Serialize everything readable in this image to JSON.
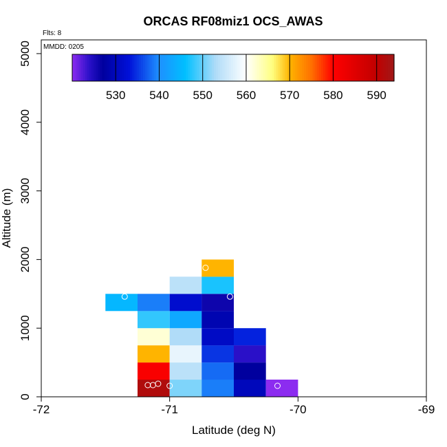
{
  "chart_data": {
    "type": "heatmap",
    "title": "ORCAS RF08miz1 OCS_AWAS",
    "flights_label": "Flts: 8",
    "date_label": "MMDD: 0205",
    "xlabel": "Latitude (deg N)",
    "ylabel": "Altitude (m)",
    "xlim": [
      -72,
      -69
    ],
    "ylim": [
      0,
      5200
    ],
    "xticks": [
      -72,
      -71,
      -70,
      -69
    ],
    "xtick_labels": [
      "-72",
      "-71",
      "-70",
      "-69"
    ],
    "yticks": [
      0,
      1000,
      2000,
      3000,
      4000,
      5000
    ],
    "ytick_labels": [
      "0",
      "1000",
      "2000",
      "3000",
      "4000",
      "5000"
    ],
    "colorbar": {
      "range": [
        520,
        594
      ],
      "ticks": [
        530,
        540,
        550,
        560,
        570,
        580,
        590
      ],
      "tick_labels": [
        "530",
        "540",
        "550",
        "560",
        "570",
        "580",
        "590"
      ],
      "stops": [
        {
          "v": 520,
          "c": "#8c2cf0"
        },
        {
          "v": 524,
          "c": "#2a10c8"
        },
        {
          "v": 527,
          "c": "#00009e"
        },
        {
          "v": 533,
          "c": "#0010d8"
        },
        {
          "v": 540,
          "c": "#1e90ff"
        },
        {
          "v": 546,
          "c": "#00bfff"
        },
        {
          "v": 553,
          "c": "#b0dcf8"
        },
        {
          "v": 560,
          "c": "#ffffff"
        },
        {
          "v": 566,
          "c": "#ffff80"
        },
        {
          "v": 570,
          "c": "#ffb400"
        },
        {
          "v": 575,
          "c": "#ff7000"
        },
        {
          "v": 580,
          "c": "#ff0000"
        },
        {
          "v": 590,
          "c": "#c00000"
        },
        {
          "v": 594,
          "c": "#a01818"
        }
      ]
    },
    "cell_width_deg": 0.25,
    "cell_height_m": 250,
    "cells": [
      {
        "lat": -71.125,
        "alt": 125,
        "value": 592
      },
      {
        "lat": -70.875,
        "alt": 125,
        "value": 551
      },
      {
        "lat": -70.625,
        "alt": 125,
        "value": 539
      },
      {
        "lat": -70.375,
        "alt": 125,
        "value": 530
      },
      {
        "lat": -70.125,
        "alt": 125,
        "value": 520
      },
      {
        "lat": -71.125,
        "alt": 375,
        "value": 581
      },
      {
        "lat": -70.875,
        "alt": 375,
        "value": 554
      },
      {
        "lat": -70.625,
        "alt": 375,
        "value": 538
      },
      {
        "lat": -70.375,
        "alt": 375,
        "value": 527
      },
      {
        "lat": -71.125,
        "alt": 625,
        "value": 570
      },
      {
        "lat": -70.875,
        "alt": 625,
        "value": 558
      },
      {
        "lat": -70.625,
        "alt": 625,
        "value": 535
      },
      {
        "lat": -70.375,
        "alt": 625,
        "value": 524
      },
      {
        "lat": -71.125,
        "alt": 875,
        "value": 562
      },
      {
        "lat": -70.875,
        "alt": 875,
        "value": 553
      },
      {
        "lat": -70.625,
        "alt": 875,
        "value": 531
      },
      {
        "lat": -70.375,
        "alt": 875,
        "value": 534
      },
      {
        "lat": -71.125,
        "alt": 1125,
        "value": 548
      },
      {
        "lat": -70.875,
        "alt": 1125,
        "value": 543
      },
      {
        "lat": -70.625,
        "alt": 1125,
        "value": 529
      },
      {
        "lat": -71.375,
        "alt": 1375,
        "value": 545
      },
      {
        "lat": -71.125,
        "alt": 1375,
        "value": 539
      },
      {
        "lat": -70.875,
        "alt": 1375,
        "value": 532
      },
      {
        "lat": -70.625,
        "alt": 1375,
        "value": 526
      },
      {
        "lat": -70.875,
        "alt": 1625,
        "value": 554
      },
      {
        "lat": -70.625,
        "alt": 1625,
        "value": 547
      },
      {
        "lat": -70.625,
        "alt": 1875,
        "value": 570
      }
    ],
    "sample_points": [
      {
        "lat": -71.35,
        "alt": 1460
      },
      {
        "lat": -70.53,
        "alt": 1460
      },
      {
        "lat": -70.72,
        "alt": 1880
      },
      {
        "lat": -71.17,
        "alt": 170
      },
      {
        "lat": -71.13,
        "alt": 170
      },
      {
        "lat": -71.09,
        "alt": 190
      },
      {
        "lat": -71.0,
        "alt": 160
      },
      {
        "lat": -70.16,
        "alt": 160
      }
    ]
  }
}
